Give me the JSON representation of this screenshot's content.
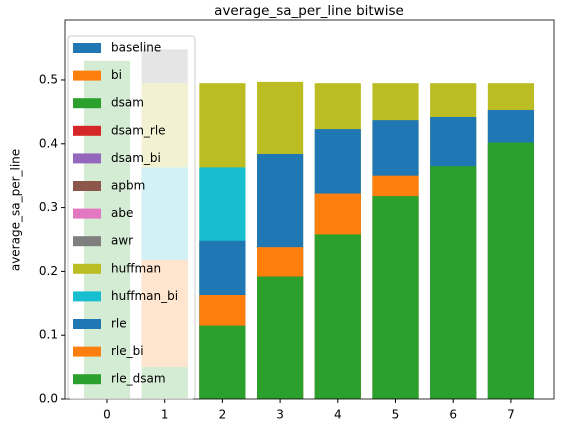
{
  "chart_data": {
    "type": "bar",
    "title": "average_sa_per_line bitwise",
    "y_label": "average_sa_per_line",
    "categories": [
      "0",
      "1",
      "2",
      "3",
      "4",
      "5",
      "6",
      "7"
    ],
    "series": [
      {
        "name": "baseline",
        "color": "#1f77b4",
        "values": [
          null,
          null,
          null,
          null,
          null,
          null,
          null,
          null
        ]
      },
      {
        "name": "bi",
        "color": "#ff7f0e",
        "values": [
          null,
          null,
          null,
          null,
          null,
          null,
          null,
          null
        ]
      },
      {
        "name": "dsam",
        "color": "#2ca02c",
        "values": [
          null,
          null,
          null,
          null,
          null,
          null,
          null,
          null
        ]
      },
      {
        "name": "dsam_rle",
        "color": "#d62728",
        "values": [
          null,
          null,
          null,
          null,
          null,
          null,
          null,
          null
        ]
      },
      {
        "name": "dsam_bi",
        "color": "#9467bd",
        "values": [
          null,
          null,
          null,
          null,
          null,
          null,
          null,
          null
        ]
      },
      {
        "name": "apbm",
        "color": "#8c564b",
        "values": [
          null,
          null,
          null,
          null,
          null,
          null,
          null,
          null
        ]
      },
      {
        "name": "abe",
        "color": "#e377c2",
        "values": [
          null,
          null,
          null,
          null,
          null,
          null,
          null,
          null
        ]
      },
      {
        "name": "awr",
        "color": "#7f7f7f",
        "values": [
          null,
          0.548,
          null,
          null,
          null,
          null,
          null,
          null
        ]
      },
      {
        "name": "huffman",
        "color": "#bcbd22",
        "values": [
          null,
          0.495,
          0.495,
          0.497,
          0.495,
          0.495,
          0.495,
          0.495
        ]
      },
      {
        "name": "huffman_bi",
        "color": "#17becf",
        "values": [
          null,
          0.363,
          0.363,
          null,
          null,
          null,
          null,
          null
        ]
      },
      {
        "name": "rle",
        "color": "#1f77b4",
        "values": [
          null,
          null,
          0.248,
          0.384,
          0.423,
          0.437,
          0.442,
          0.453
        ]
      },
      {
        "name": "rle_bi",
        "color": "#ff7f0e",
        "values": [
          null,
          0.218,
          0.163,
          0.238,
          0.322,
          0.35,
          null,
          null
        ]
      },
      {
        "name": "rle_dsam",
        "color": "#2ca02c",
        "values": [
          0.53,
          0.05,
          0.115,
          0.192,
          0.258,
          0.318,
          0.365,
          0.402
        ]
      }
    ],
    "ylim": [
      0,
      0.594
    ],
    "yticks": [
      {
        "value": 0,
        "label": "0.0"
      },
      0.1,
      0.2,
      0.3,
      0.4,
      0.5
    ],
    "legend": "upper left"
  }
}
